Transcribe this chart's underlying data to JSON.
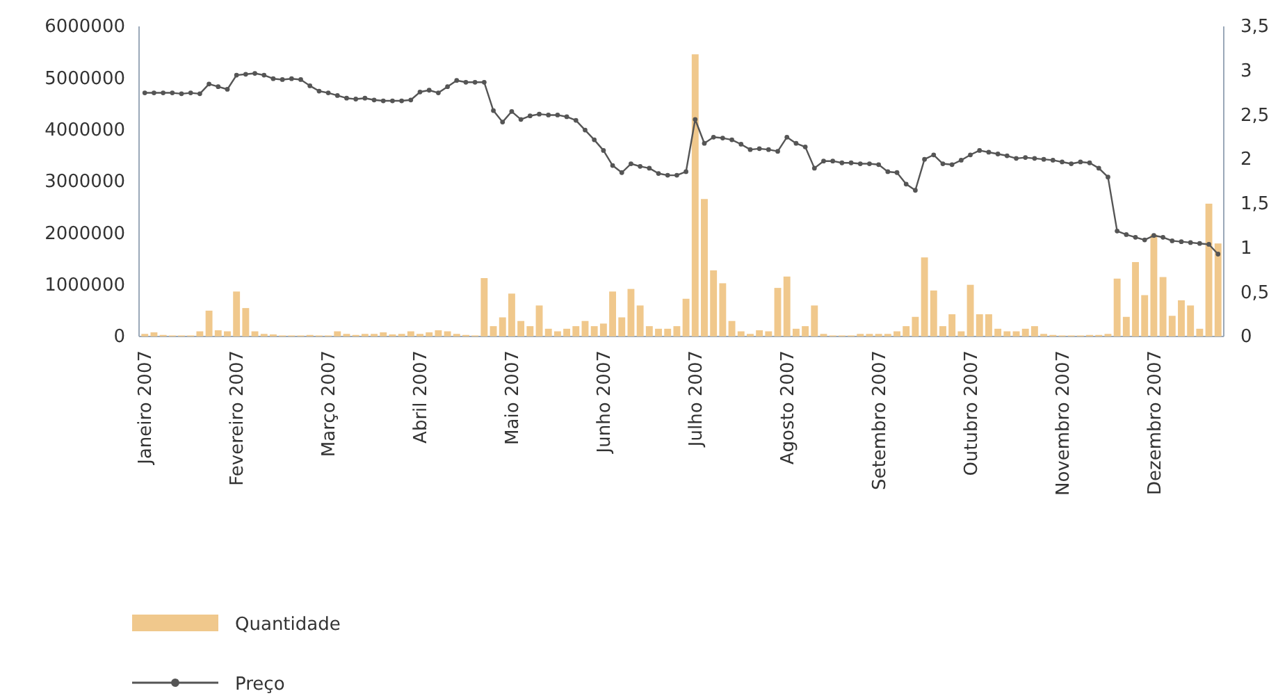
{
  "chart_data": {
    "type": "bar",
    "categories": [
      "Janeiro 2007",
      null,
      null,
      null,
      null,
      null,
      null,
      null,
      null,
      null,
      "Fevereiro 2007",
      null,
      null,
      null,
      null,
      null,
      null,
      null,
      null,
      null,
      "Março 2007",
      null,
      null,
      null,
      null,
      null,
      null,
      null,
      null,
      null,
      "Abril 2007",
      null,
      null,
      null,
      null,
      null,
      null,
      null,
      null,
      null,
      "Maio 2007",
      null,
      null,
      null,
      null,
      null,
      null,
      null,
      null,
      null,
      "Junho 2007",
      null,
      null,
      null,
      null,
      null,
      null,
      null,
      null,
      null,
      "Julho 2007",
      null,
      null,
      null,
      null,
      null,
      null,
      null,
      null,
      null,
      "Agosto 2007",
      null,
      null,
      null,
      null,
      null,
      null,
      null,
      null,
      null,
      "Setembro 2007",
      null,
      null,
      null,
      null,
      null,
      null,
      null,
      null,
      null,
      "Outubro 2007",
      null,
      null,
      null,
      null,
      null,
      null,
      null,
      null,
      null,
      "Novembro 2007",
      null,
      null,
      null,
      null,
      null,
      null,
      null,
      null,
      null,
      "Dezembro 2007",
      null,
      null,
      null,
      null,
      null,
      null,
      null
    ],
    "series": [
      {
        "name": "Quantidade",
        "color": "#f0c88c",
        "values": [
          50000,
          80000,
          30000,
          20000,
          20000,
          20000,
          100000,
          500000,
          120000,
          100000,
          870000,
          550000,
          100000,
          50000,
          40000,
          20000,
          20000,
          20000,
          30000,
          20000,
          20000,
          100000,
          50000,
          30000,
          50000,
          50000,
          80000,
          40000,
          50000,
          100000,
          50000,
          80000,
          120000,
          100000,
          50000,
          30000,
          20000,
          1130000,
          200000,
          370000,
          830000,
          300000,
          200000,
          600000,
          150000,
          100000,
          150000,
          200000,
          300000,
          200000,
          250000,
          870000,
          370000,
          920000,
          600000,
          200000,
          150000,
          150000,
          200000,
          730000,
          5460000,
          2660000,
          1280000,
          1030000,
          300000,
          100000,
          50000,
          120000,
          100000,
          940000,
          1160000,
          150000,
          200000,
          600000,
          50000,
          20000,
          20000,
          20000,
          50000,
          50000,
          50000,
          50000,
          100000,
          200000,
          380000,
          1530000,
          890000,
          200000,
          430000,
          100000,
          1000000,
          430000,
          430000,
          150000,
          100000,
          100000,
          150000,
          200000,
          50000,
          30000,
          20000,
          20000,
          20000,
          30000,
          30000,
          50000,
          1120000,
          380000,
          1440000,
          800000,
          1970000,
          1150000,
          400000,
          700000,
          600000,
          150000,
          2570000,
          1800000
        ]
      },
      {
        "name": "Preço",
        "type": "line",
        "axis": "y2",
        "color": "#555555",
        "values": [
          2.75,
          2.75,
          2.75,
          2.75,
          2.74,
          2.75,
          2.74,
          2.85,
          2.82,
          2.79,
          2.95,
          2.96,
          2.97,
          2.95,
          2.91,
          2.9,
          2.91,
          2.9,
          2.83,
          2.77,
          2.75,
          2.72,
          2.69,
          2.68,
          2.69,
          2.67,
          2.66,
          2.66,
          2.66,
          2.67,
          2.76,
          2.78,
          2.75,
          2.82,
          2.89,
          2.87,
          2.87,
          2.87,
          2.55,
          2.42,
          2.54,
          2.45,
          2.49,
          2.51,
          2.5,
          2.5,
          2.48,
          2.44,
          2.33,
          2.22,
          2.1,
          1.93,
          1.85,
          1.95,
          1.92,
          1.9,
          1.84,
          1.82,
          1.82,
          1.86,
          2.45,
          2.18,
          2.25,
          2.24,
          2.22,
          2.17,
          2.11,
          2.12,
          2.11,
          2.09,
          2.25,
          2.18,
          2.14,
          1.9,
          1.98,
          1.98,
          1.96,
          1.96,
          1.95,
          1.95,
          1.94,
          1.86,
          1.85,
          1.72,
          1.65,
          2.0,
          2.05,
          1.95,
          1.94,
          1.99,
          2.05,
          2.1,
          2.08,
          2.06,
          2.04,
          2.01,
          2.02,
          2.01,
          2.0,
          1.99,
          1.97,
          1.95,
          1.97,
          1.96,
          1.9,
          1.8,
          1.19,
          1.15,
          1.12,
          1.09,
          1.14,
          1.12,
          1.08,
          1.07,
          1.06,
          1.05,
          1.04,
          0.93
        ]
      }
    ],
    "ylim": [
      0,
      6000000
    ],
    "yticks": [
      0,
      1000000,
      2000000,
      3000000,
      4000000,
      5000000,
      6000000
    ],
    "y2lim": [
      0,
      3.5
    ],
    "y2ticks": [
      0,
      {
        "value": 0.5,
        "label": "0,5"
      },
      1,
      {
        "value": 1.5,
        "label": "1,5"
      },
      2,
      {
        "value": 2.5,
        "label": "2,5"
      },
      3,
      {
        "value": 3.5,
        "label": "3,5"
      }
    ],
    "legend": "bottom left",
    "marker": "circle",
    "line_style": "solid",
    "grid": false
  }
}
